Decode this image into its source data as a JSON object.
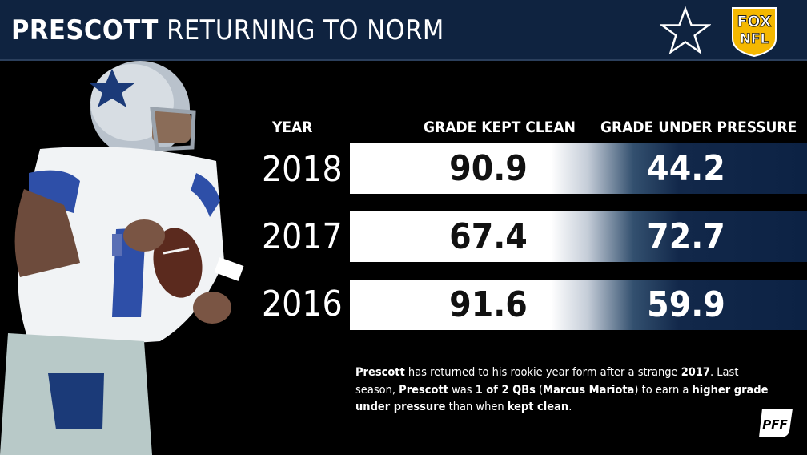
{
  "header": {
    "title_bold": "PRESCOTT",
    "title_light": "RETURNING TO NORM",
    "star_icon": "cowboys-star-icon",
    "network_logo": {
      "line1": "FOX",
      "line2": "NFL"
    }
  },
  "table": {
    "year_header": "YEAR",
    "col1_header": "GRADE KEPT CLEAN",
    "col2_header": "GRADE UNDER PRESSURE",
    "rows": [
      {
        "year": "2018",
        "kept_clean": "90.9",
        "under_pressure": "44.2"
      },
      {
        "year": "2017",
        "kept_clean": "67.4",
        "under_pressure": "72.7"
      },
      {
        "year": "2016",
        "kept_clean": "91.6",
        "under_pressure": "59.9"
      }
    ]
  },
  "note": {
    "s1": "Prescott",
    "s2": " has returned to his rookie year form after a strange ",
    "s3": "2017",
    "s4": ". Last season, ",
    "s5": "Prescott",
    "s6": " was ",
    "s7": "1 of 2 QBs",
    "s8": " (",
    "s9": "Marcus Mariota",
    "s10": ") to earn a ",
    "s11": "higher grade under pressure",
    "s12": " than when ",
    "s13": "kept clean",
    "s14": "."
  },
  "footer": {
    "logo": "PFF"
  },
  "colors": {
    "header_bg": "#0f2340",
    "bar_dark": "#0c2244",
    "accent_gold": "#f5b800"
  }
}
